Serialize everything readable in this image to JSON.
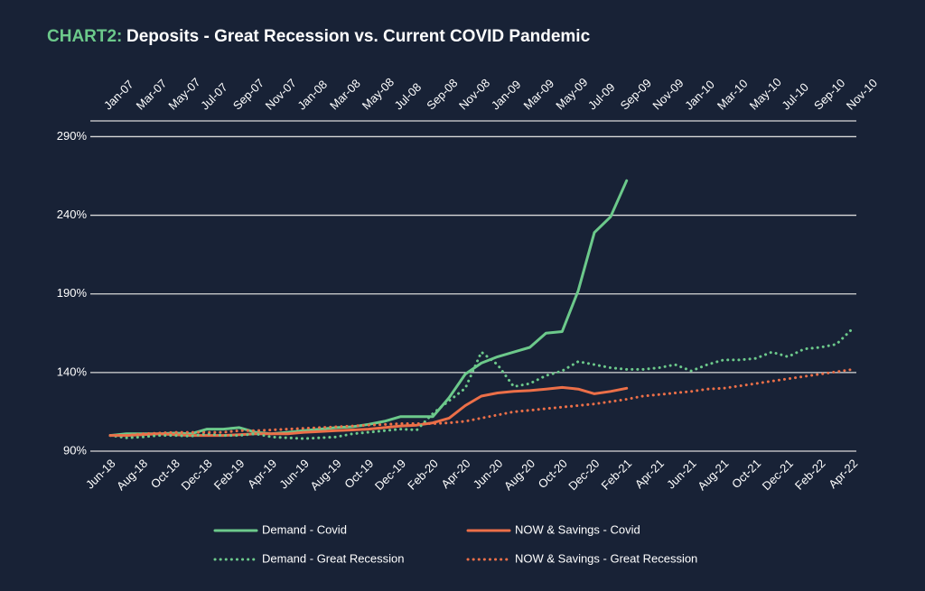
{
  "chart_data": {
    "type": "line",
    "title_label": "CHART2:",
    "title": "Deposits - Great Recession vs. Current COVID Pandemic",
    "categories": [
      "Jun-18",
      null,
      "Aug-18",
      null,
      "Oct-18",
      null,
      "Dec-18",
      null,
      "Feb-19",
      null,
      "Apr-19",
      null,
      "Jun-19",
      null,
      "Aug-19",
      null,
      "Oct-19",
      null,
      "Dec-19",
      null,
      "Feb-20",
      null,
      "Apr-20",
      null,
      "Jun-20",
      null,
      "Aug-20",
      null,
      "Oct-20",
      null,
      "Dec-20",
      null,
      "Feb-21",
      null,
      "Apr-21",
      null,
      "Jun-21",
      null,
      "Aug-21",
      null,
      "Oct-21",
      null,
      "Dec-21",
      null,
      "Feb-22",
      null,
      "Apr-22"
    ],
    "x2_categories": [
      "Jan-07",
      null,
      "Mar-07",
      null,
      "May-07",
      null,
      "Jul-07",
      null,
      "Sep-07",
      null,
      "Nov-07",
      null,
      "Jan-08",
      null,
      "Mar-08",
      null,
      "May-08",
      null,
      "Jul-08",
      null,
      "Sep-08",
      null,
      "Nov-08",
      null,
      "Jan-09",
      null,
      "Mar-09",
      null,
      "May-09",
      null,
      "Jul-09",
      null,
      "Sep-09",
      null,
      "Nov-09",
      null,
      "Jan-10",
      null,
      "Mar-10",
      null,
      "May-10",
      null,
      "Jul-10",
      null,
      "Sep-10",
      null,
      "Nov-10"
    ],
    "ylim": [
      90,
      300
    ],
    "yticks": [
      {
        "value": 90,
        "label": "90%"
      },
      {
        "value": 140,
        "label": "140%"
      },
      {
        "value": 190,
        "label": "190%"
      },
      {
        "value": 240,
        "label": "240%"
      },
      {
        "value": 290,
        "label": "290%"
      }
    ],
    "grid": true,
    "series": [
      {
        "name": "Demand - Covid",
        "color": "#6cc98b",
        "dashed": false,
        "values": [
          100,
          101,
          101,
          101,
          101.5,
          101,
          104,
          104,
          105,
          102,
          101,
          102,
          103,
          104,
          105,
          105.5,
          107,
          109,
          112,
          112,
          112,
          124,
          139,
          146,
          150,
          153,
          156,
          165,
          166,
          192,
          229,
          239,
          262,
          null,
          null,
          null,
          null,
          null,
          null,
          null,
          null,
          null,
          null,
          null,
          null,
          null,
          null
        ]
      },
      {
        "name": "NOW & Savings - Covid",
        "color": "#ec6f48",
        "dashed": false,
        "values": [
          100,
          100,
          100.5,
          101,
          100.5,
          100,
          100,
          100,
          100.5,
          101,
          101,
          101,
          102,
          102.5,
          103,
          103.5,
          104,
          105,
          106,
          106.5,
          108,
          111,
          119,
          125,
          127,
          128,
          128.5,
          129.5,
          130.5,
          129.5,
          126.5,
          128,
          130,
          null,
          null,
          null,
          null,
          null,
          null,
          null,
          null,
          null,
          null,
          null,
          null,
          null,
          null
        ]
      },
      {
        "name": "Demand - Great Recession",
        "color": "#6cc98b",
        "dashed": true,
        "values": [
          100,
          98.5,
          99,
          100,
          100,
          99.5,
          101,
          100,
          100,
          101,
          99,
          98.5,
          98,
          98.5,
          99,
          101,
          102,
          103,
          104,
          103.5,
          114,
          122,
          130,
          153,
          145,
          131,
          133,
          138,
          141,
          147,
          145,
          143,
          142,
          142,
          143,
          145,
          141,
          145,
          148,
          148,
          149,
          153,
          150,
          155,
          156,
          158,
          168
        ]
      },
      {
        "name": "NOW & Savings - Great Recession",
        "color": "#ec6f48",
        "dashed": true,
        "values": [
          100,
          100,
          101,
          101.5,
          102,
          102,
          102,
          102,
          103,
          103,
          103.5,
          104,
          104.5,
          105,
          105.5,
          106,
          106.5,
          107,
          107.5,
          107.5,
          107.5,
          108,
          109,
          111,
          113,
          115,
          116,
          117,
          118,
          119,
          120,
          121.5,
          123,
          125,
          126,
          127,
          128,
          129.5,
          130,
          131.5,
          133,
          134.5,
          136,
          137.5,
          139,
          140.5,
          142
        ]
      }
    ]
  }
}
